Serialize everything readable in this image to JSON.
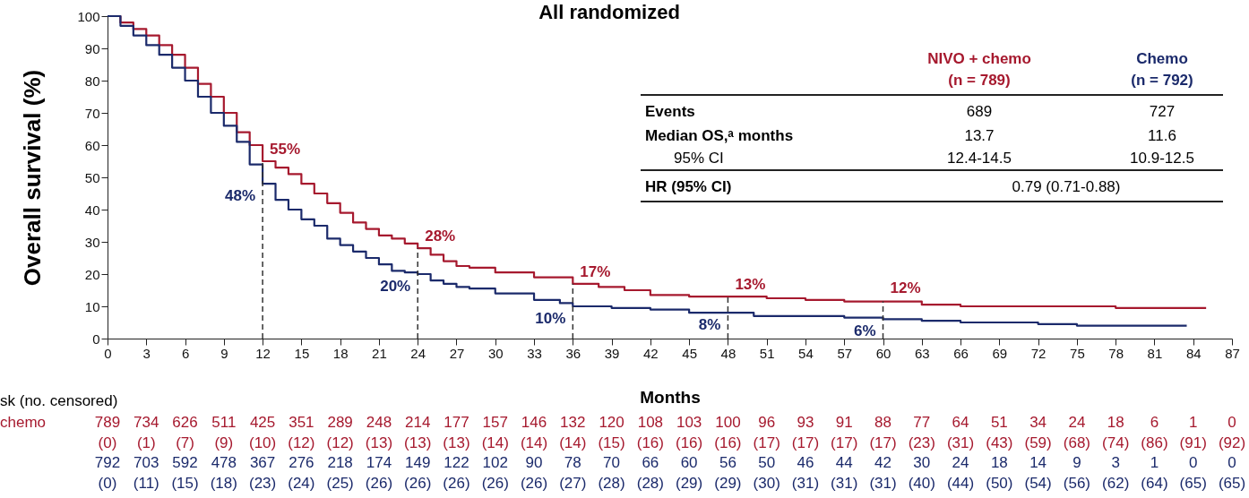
{
  "chart_data": {
    "type": "step",
    "title": "All randomized",
    "xlabel": "Months",
    "ylabel": "Overall survival (%)",
    "xlim": [
      0,
      87
    ],
    "xticks": [
      0,
      3,
      6,
      9,
      12,
      15,
      18,
      21,
      24,
      27,
      30,
      33,
      36,
      39,
      42,
      45,
      48,
      51,
      54,
      57,
      60,
      63,
      66,
      69,
      72,
      75,
      78,
      81,
      84,
      87
    ],
    "ylim": [
      0,
      100
    ],
    "yticks": [
      0,
      10,
      20,
      30,
      40,
      50,
      60,
      70,
      80,
      90,
      100
    ],
    "series": [
      {
        "name": "NIVO + chemo",
        "color": "#a6192e",
        "x": [
          0,
          1,
          2,
          3,
          4,
          5,
          6,
          7,
          8,
          9,
          10,
          11,
          12,
          13,
          14,
          15,
          16,
          17,
          18,
          19,
          20,
          21,
          22,
          23,
          24,
          25,
          26,
          27,
          28,
          30,
          33,
          36,
          38,
          40,
          42,
          45,
          48,
          51,
          54,
          57,
          60,
          63,
          66,
          72,
          78,
          85
        ],
        "values": [
          100,
          98,
          96,
          94,
          91,
          88,
          84,
          79,
          75,
          70,
          64,
          60,
          55,
          53,
          51,
          48,
          45,
          42,
          39,
          36,
          34,
          32,
          31,
          29.5,
          28,
          26,
          24,
          22.5,
          22,
          20.5,
          19,
          17,
          16,
          15,
          13.5,
          13,
          13,
          12.5,
          12,
          11.5,
          11.5,
          10.5,
          10,
          10,
          9.5,
          9.5
        ]
      },
      {
        "name": "Chemo",
        "color": "#1b2a6b",
        "x": [
          0,
          1,
          2,
          3,
          4,
          5,
          6,
          7,
          8,
          9,
          10,
          11,
          12,
          13,
          14,
          15,
          16,
          17,
          18,
          19,
          20,
          21,
          22,
          23,
          24,
          25,
          26,
          27,
          28,
          30,
          33,
          35,
          36,
          39,
          42,
          45,
          48,
          50,
          54,
          57,
          60,
          63,
          66,
          69,
          72,
          75,
          80,
          83.5
        ],
        "values": [
          100,
          97,
          94,
          91,
          88,
          84,
          80,
          75,
          70,
          66,
          61,
          54,
          48,
          43,
          40,
          37,
          35,
          31,
          29,
          27,
          25,
          23,
          21,
          20.5,
          20,
          18,
          17,
          16,
          15.5,
          14,
          12,
          11,
          10,
          9.5,
          9,
          8,
          8,
          7,
          7,
          6.5,
          6,
          5.5,
          5,
          5,
          4.5,
          4,
          4,
          4
        ]
      }
    ],
    "ref_lines": [
      {
        "axis": "x",
        "value": 12,
        "line_style": "dashed",
        "color": "#333333"
      },
      {
        "axis": "x",
        "value": 24,
        "line_style": "dashed",
        "color": "#333333"
      },
      {
        "axis": "x",
        "value": 36,
        "line_style": "dashed",
        "color": "#333333"
      },
      {
        "axis": "x",
        "value": 48,
        "line_style": "dashed",
        "color": "#333333"
      },
      {
        "axis": "x",
        "value": 60,
        "line_style": "dashed",
        "color": "#333333"
      }
    ],
    "annotations": [
      "(n = 789)",
      "(n = 792)",
      "Events",
      "689",
      "727",
      "Median OS,ᵃ months",
      "13.7",
      "11.6",
      "95% CI",
      "12.4-14.5",
      "10.9-12.5",
      "HR (95% CI)",
      "0.79 (0.71-0.88)",
      "sk (no. censored)",
      "chemo",
      "789 734 626 511 425 351 289 248 214 177 157 146 132 120 108 103 100 96 93 91 88 77 64 51 34 24 18 6 1 0",
      "(0) (1) (7) (9) (10) (12) (12) (13) (13) (13) (14) (14) (14) (15) (16) (16) (16) (17) (17) (17) (17) (23) (31) (43) (59) (68) (74) (86) (91) (92)",
      "792 703 592 478 367 276 218 174 149 122 102 90 78 70 66 60 56 50 46 44 42 30 24 18 14 9 3 1 0 0",
      "(0) (11) (15) (18) (23) (24) (25) (26) (26) (26) (26) (26) (27) (28) (28) (29) (29) (30) (31) (31) (31) (40) (44) (50) (54) (56) (62) (64) (65) (65)",
      {
        "text": "55%",
        "x": 12,
        "y": 55
      },
      {
        "text": "48%",
        "x": 12,
        "y": 48
      },
      {
        "text": "28%",
        "x": 24,
        "y": 28
      },
      {
        "text": "20%",
        "x": 24,
        "y": 20
      },
      {
        "text": "17%",
        "x": 36,
        "y": 17
      },
      {
        "text": "10%",
        "x": 36,
        "y": 10
      },
      {
        "text": "13%",
        "x": 48,
        "y": 13
      },
      {
        "text": "8%",
        "x": 48,
        "y": 8
      },
      {
        "text": "12%",
        "x": 60,
        "y": 12
      },
      {
        "text": "6%",
        "x": 60,
        "y": 6
      }
    ]
  }
}
